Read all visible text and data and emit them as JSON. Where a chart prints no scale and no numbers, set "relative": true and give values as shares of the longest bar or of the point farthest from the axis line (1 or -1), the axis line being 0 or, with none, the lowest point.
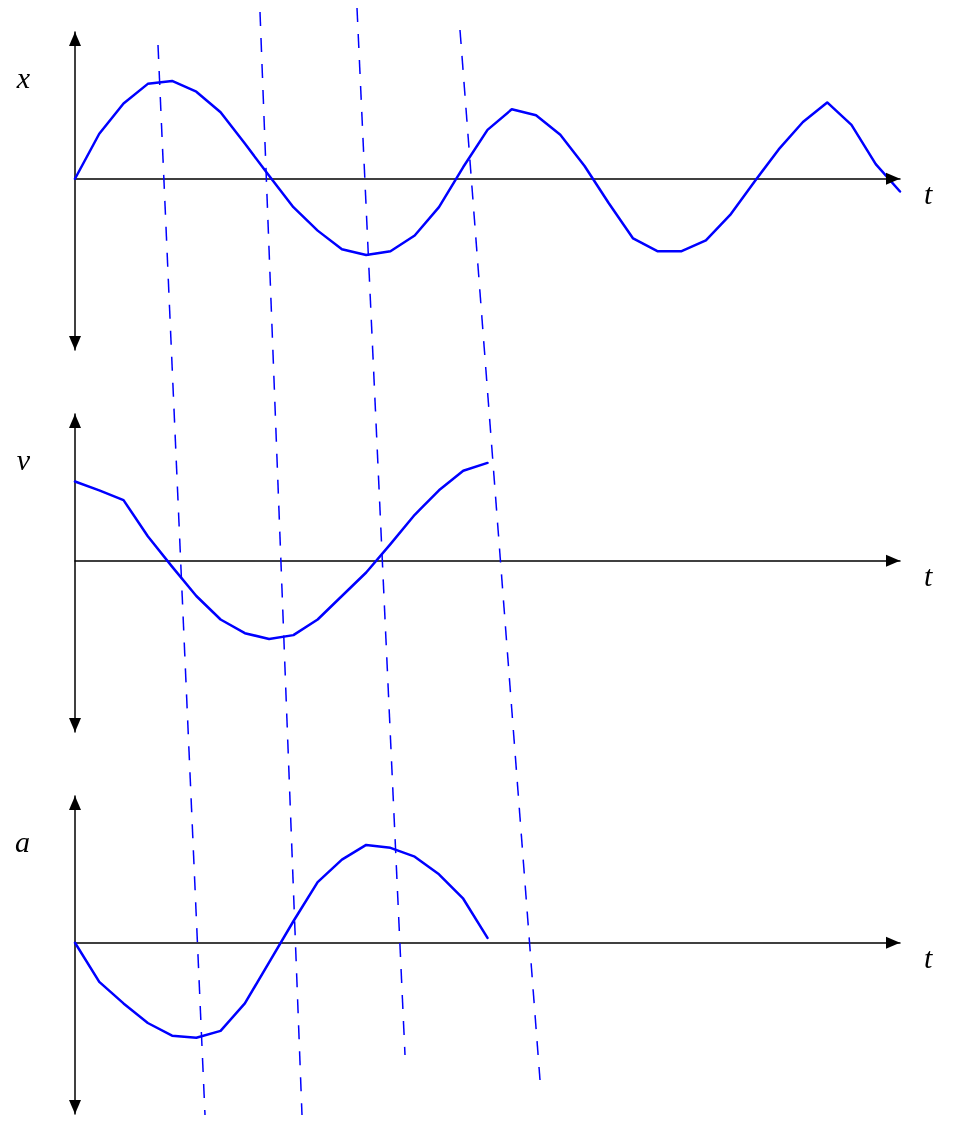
{
  "chart_data": [
    {
      "type": "line",
      "xlabel": "t",
      "ylabel": "x",
      "relative": true,
      "color": "#0000ff",
      "tick_labels": false,
      "grid": false,
      "marker": "none",
      "line_style": "solid",
      "categories": [
        null,
        null,
        null,
        null,
        null,
        null,
        null,
        null,
        null,
        null,
        null,
        null,
        null,
        null,
        null,
        null,
        null,
        null,
        null,
        null,
        null,
        null,
        null,
        null,
        null,
        null,
        null,
        null,
        null,
        null,
        null,
        null,
        null,
        null,
        null
      ],
      "values": [
        0,
        0.46,
        0.77,
        0.97,
        1,
        0.89,
        0.68,
        0.36,
        0.03,
        -0.29,
        -0.53,
        -0.72,
        -0.78,
        -0.74,
        -0.58,
        -0.29,
        0.12,
        0.5,
        0.71,
        0.65,
        0.45,
        0.13,
        -0.25,
        -0.61,
        -0.74,
        -0.74,
        -0.63,
        -0.37,
        -0.03,
        0.3,
        0.58,
        0.78,
        0.55,
        0.15,
        -0.13
      ]
    },
    {
      "type": "line",
      "xlabel": "t",
      "ylabel": "v",
      "relative": true,
      "color": "#0000ff",
      "tick_labels": false,
      "grid": false,
      "marker": "none",
      "line_style": "solid",
      "categories": [
        null,
        null,
        null,
        null,
        null,
        null,
        null,
        null,
        null,
        null,
        null,
        null,
        null,
        null,
        null,
        null,
        null,
        null,
        null,
        null,
        null,
        null,
        null,
        null,
        null,
        null,
        null,
        null,
        null,
        null,
        null,
        null,
        null,
        null,
        null
      ],
      "values": [
        0.81,
        0.72,
        0.62,
        0.25,
        -0.06,
        -0.36,
        -0.6,
        -0.74,
        -0.8,
        -0.76,
        -0.6,
        -0.36,
        -0.12,
        0.17,
        0.47,
        0.72,
        0.92,
        1,
        null,
        null,
        null,
        null,
        null,
        null,
        null,
        null,
        null,
        null,
        null,
        null,
        null,
        null,
        null,
        null,
        null
      ]
    },
    {
      "type": "line",
      "xlabel": "t",
      "ylabel": "a",
      "relative": true,
      "color": "#0000ff",
      "tick_labels": false,
      "grid": false,
      "marker": "none",
      "line_style": "solid",
      "categories": [
        null,
        null,
        null,
        null,
        null,
        null,
        null,
        null,
        null,
        null,
        null,
        null,
        null,
        null,
        null,
        null,
        null,
        null,
        null,
        null,
        null,
        null,
        null,
        null,
        null,
        null,
        null,
        null,
        null,
        null,
        null,
        null,
        null,
        null,
        null
      ],
      "values": [
        0,
        -0.4,
        -0.62,
        -0.82,
        -0.95,
        -0.97,
        -0.9,
        -0.62,
        -0.2,
        0.22,
        0.62,
        0.85,
        1,
        0.97,
        0.88,
        0.7,
        0.45,
        0.05,
        null,
        null,
        null,
        null,
        null,
        null,
        null,
        null,
        null,
        null,
        null,
        null,
        null,
        null,
        null,
        null,
        null
      ]
    }
  ]
}
